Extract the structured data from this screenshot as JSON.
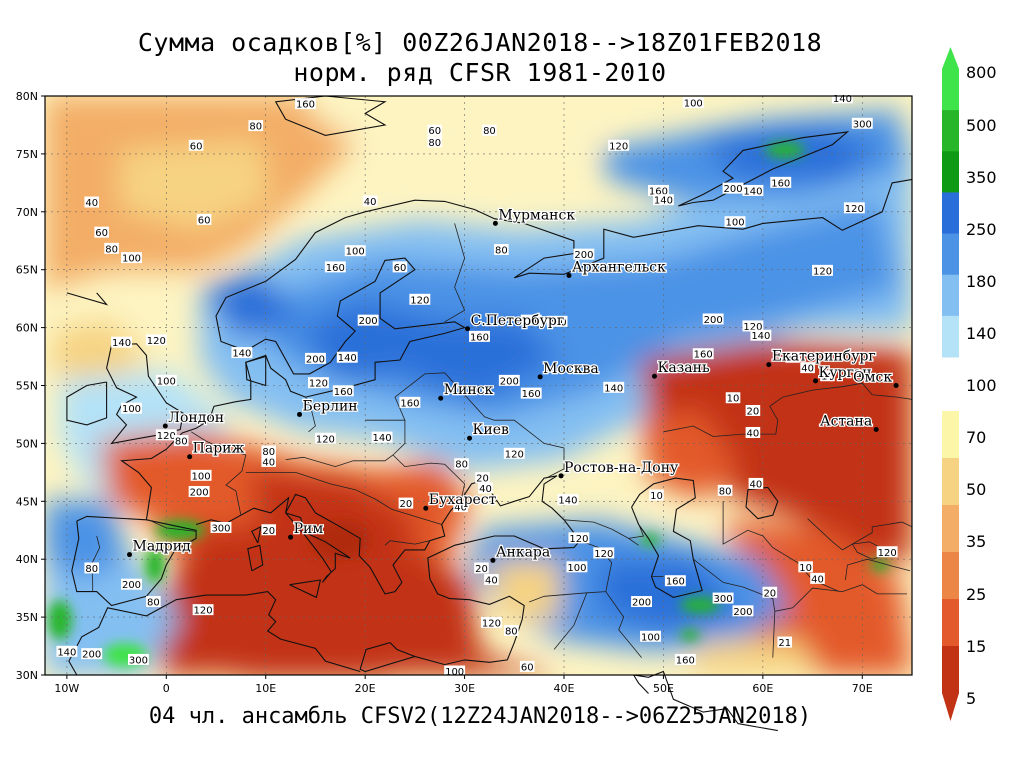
{
  "title_line1": "Сумма осадков[%] 00Z26JAN2018-->18Z01FEB2018",
  "title_line2": "норм. ряд CFSR 1981-2010",
  "footer": "04 чл. ансамбль CFSV2(12Z24JAN2018-->06Z25JAN2018)",
  "lat_labels": [
    "80N",
    "75N",
    "70N",
    "65N",
    "60N",
    "55N",
    "50N",
    "45N",
    "40N",
    "35N",
    "30N"
  ],
  "lon_labels": [
    "10W",
    "0",
    "10E",
    "20E",
    "30E",
    "40E",
    "50E",
    "60E",
    "70E"
  ],
  "cities": [
    {
      "name": "Мурманск",
      "lon": 33.1,
      "lat": 69.0
    },
    {
      "name": "Архангельск",
      "lon": 40.5,
      "lat": 64.5
    },
    {
      "name": "С.Петербург",
      "lon": 30.3,
      "lat": 59.9
    },
    {
      "name": "Москва",
      "lon": 37.6,
      "lat": 55.75
    },
    {
      "name": "Казань",
      "lon": 49.1,
      "lat": 55.8
    },
    {
      "name": "Екатеринбург",
      "lon": 60.6,
      "lat": 56.8
    },
    {
      "name": "Курган",
      "lon": 65.3,
      "lat": 55.4
    },
    {
      "name": "Омск",
      "lon": 73.4,
      "lat": 55.0
    },
    {
      "name": "Астана",
      "lon": 71.4,
      "lat": 51.2
    },
    {
      "name": "Минск",
      "lon": 27.6,
      "lat": 53.9
    },
    {
      "name": "Берлин",
      "lon": 13.4,
      "lat": 52.5
    },
    {
      "name": "Лондон",
      "lon": -0.1,
      "lat": 51.5
    },
    {
      "name": "Париж",
      "lon": 2.35,
      "lat": 48.85
    },
    {
      "name": "Киев",
      "lon": 30.5,
      "lat": 50.45
    },
    {
      "name": "Ростов-на-Дону",
      "lon": 39.7,
      "lat": 47.2
    },
    {
      "name": "Бухарест",
      "lon": 26.1,
      "lat": 44.4
    },
    {
      "name": "Рим",
      "lon": 12.5,
      "lat": 41.9
    },
    {
      "name": "Мадрид",
      "lon": -3.7,
      "lat": 40.4
    },
    {
      "name": "Анкара",
      "lon": 32.85,
      "lat": 39.9
    }
  ],
  "contour_labels": [
    {
      "text": "160",
      "lon": 14,
      "lat": 79.3
    },
    {
      "text": "80",
      "lon": 9,
      "lat": 77.4
    },
    {
      "text": "60",
      "lon": 3,
      "lat": 75.7
    },
    {
      "text": "60",
      "lon": 27,
      "lat": 77
    },
    {
      "text": "80",
      "lon": 27,
      "lat": 76
    },
    {
      "text": "80",
      "lon": 32.5,
      "lat": 77
    },
    {
      "text": "120",
      "lon": 45.5,
      "lat": 75.7
    },
    {
      "text": "100",
      "lon": 53,
      "lat": 79.4
    },
    {
      "text": "140",
      "lon": 68,
      "lat": 79.8
    },
    {
      "text": "300",
      "lon": 70,
      "lat": 77.6
    },
    {
      "text": "160",
      "lon": 61.8,
      "lat": 72.5
    },
    {
      "text": "200",
      "lon": 57,
      "lat": 72
    },
    {
      "text": "140",
      "lon": 59,
      "lat": 71.8
    },
    {
      "text": "160",
      "lon": 49.5,
      "lat": 71.8
    },
    {
      "text": "140",
      "lon": 50,
      "lat": 71
    },
    {
      "text": "120",
      "lon": 69.2,
      "lat": 70.3
    },
    {
      "text": "100",
      "lon": 57.2,
      "lat": 69.1
    },
    {
      "text": "40",
      "lon": -7.5,
      "lat": 70.8
    },
    {
      "text": "60",
      "lon": 3.8,
      "lat": 69.3
    },
    {
      "text": "40",
      "lon": 20.5,
      "lat": 70.9
    },
    {
      "text": "60",
      "lon": -6.5,
      "lat": 68.2
    },
    {
      "text": "80",
      "lon": -5.5,
      "lat": 66.8
    },
    {
      "text": "100",
      "lon": -3.5,
      "lat": 66
    },
    {
      "text": "100",
      "lon": 19,
      "lat": 66.6
    },
    {
      "text": "160",
      "lon": 17,
      "lat": 65.2
    },
    {
      "text": "60",
      "lon": 23.5,
      "lat": 65.2
    },
    {
      "text": "80",
      "lon": 33.7,
      "lat": 66.7
    },
    {
      "text": "200",
      "lon": 42,
      "lat": 66.3
    },
    {
      "text": "120",
      "lon": 66,
      "lat": 64.9
    },
    {
      "text": "120",
      "lon": 25.5,
      "lat": 62.4
    },
    {
      "text": "200",
      "lon": 20.3,
      "lat": 60.6
    },
    {
      "text": "140",
      "lon": 36.7,
      "lat": 60.6
    },
    {
      "text": "200",
      "lon": 39.3,
      "lat": 60.5
    },
    {
      "text": "200",
      "lon": 55,
      "lat": 60.7
    },
    {
      "text": "120",
      "lon": 59,
      "lat": 60.1
    },
    {
      "text": "140",
      "lon": 59.8,
      "lat": 59.3
    },
    {
      "text": "160",
      "lon": 31.5,
      "lat": 59.2
    },
    {
      "text": "140",
      "lon": -4.5,
      "lat": 58.7
    },
    {
      "text": "120",
      "lon": -1,
      "lat": 58.9
    },
    {
      "text": "140",
      "lon": 7.6,
      "lat": 57.8
    },
    {
      "text": "200",
      "lon": 15,
      "lat": 57.3
    },
    {
      "text": "140",
      "lon": 18.2,
      "lat": 57.4
    },
    {
      "text": "160",
      "lon": 54,
      "lat": 57.7
    },
    {
      "text": "80",
      "lon": 63,
      "lat": 57.4
    },
    {
      "text": "40",
      "lon": 64.5,
      "lat": 56.5
    },
    {
      "text": "10",
      "lon": 66.5,
      "lat": 55.8
    },
    {
      "text": "100",
      "lon": 0,
      "lat": 55.4
    },
    {
      "text": "120",
      "lon": 15.3,
      "lat": 55.2
    },
    {
      "text": "200",
      "lon": 34.5,
      "lat": 55.4
    },
    {
      "text": "140",
      "lon": 45,
      "lat": 54.8
    },
    {
      "text": "160",
      "lon": 17.8,
      "lat": 54.5
    },
    {
      "text": "160",
      "lon": 36.7,
      "lat": 54.3
    },
    {
      "text": "10",
      "lon": 57,
      "lat": 53.9
    },
    {
      "text": "20",
      "lon": 59,
      "lat": 52.8
    },
    {
      "text": "100",
      "lon": -3.5,
      "lat": 53
    },
    {
      "text": "160",
      "lon": 24.5,
      "lat": 53.5
    },
    {
      "text": "40",
      "lon": 59,
      "lat": 50.9
    },
    {
      "text": "120",
      "lon": 0,
      "lat": 50.7
    },
    {
      "text": "80",
      "lon": 1.5,
      "lat": 50.2
    },
    {
      "text": "120",
      "lon": 16,
      "lat": 50.4
    },
    {
      "text": "140",
      "lon": 21.7,
      "lat": 50.5
    },
    {
      "text": "80",
      "lon": 10.3,
      "lat": 49.3
    },
    {
      "text": "40",
      "lon": 10.3,
      "lat": 48.4
    },
    {
      "text": "120",
      "lon": 35,
      "lat": 49.1
    },
    {
      "text": "80",
      "lon": 29.7,
      "lat": 48.2
    },
    {
      "text": "100",
      "lon": 3.5,
      "lat": 47.2
    },
    {
      "text": "20",
      "lon": 31.8,
      "lat": 47
    },
    {
      "text": "40",
      "lon": 32.1,
      "lat": 46.1
    },
    {
      "text": "200",
      "lon": 3.3,
      "lat": 45.8
    },
    {
      "text": "40",
      "lon": 59.3,
      "lat": 46.5
    },
    {
      "text": "80",
      "lon": 56.2,
      "lat": 45.9
    },
    {
      "text": "10",
      "lon": 49.3,
      "lat": 45.5
    },
    {
      "text": "140",
      "lon": 40.4,
      "lat": 45.1
    },
    {
      "text": "20",
      "lon": 24.1,
      "lat": 44.8
    },
    {
      "text": "40",
      "lon": 29.6,
      "lat": 44.5
    },
    {
      "text": "20",
      "lon": 10.3,
      "lat": 42.5
    },
    {
      "text": "300",
      "lon": 5.5,
      "lat": 42.7
    },
    {
      "text": "120",
      "lon": 41.5,
      "lat": 41.8
    },
    {
      "text": "120",
      "lon": 44,
      "lat": 40.5
    },
    {
      "text": "80",
      "lon": -7.5,
      "lat": 39.2
    },
    {
      "text": "100",
      "lon": 41.3,
      "lat": 39.3
    },
    {
      "text": "20",
      "lon": 31.7,
      "lat": 39.2
    },
    {
      "text": "40",
      "lon": 32.7,
      "lat": 38.2
    },
    {
      "text": "200",
      "lon": -3.5,
      "lat": 37.8
    },
    {
      "text": "10",
      "lon": 64.3,
      "lat": 39.3
    },
    {
      "text": "40",
      "lon": 65.5,
      "lat": 38.3
    },
    {
      "text": "120",
      "lon": 72.5,
      "lat": 40.6
    },
    {
      "text": "160",
      "lon": 51.2,
      "lat": 38.1
    },
    {
      "text": "20",
      "lon": 60.7,
      "lat": 37.1
    },
    {
      "text": "300",
      "lon": 56,
      "lat": 36.6
    },
    {
      "text": "200",
      "lon": 47.8,
      "lat": 36.3
    },
    {
      "text": "200",
      "lon": 58,
      "lat": 35.5
    },
    {
      "text": "80",
      "lon": -1.3,
      "lat": 36.3
    },
    {
      "text": "120",
      "lon": 3.7,
      "lat": 35.6
    },
    {
      "text": "120",
      "lon": 32.7,
      "lat": 34.5
    },
    {
      "text": "80",
      "lon": 34.7,
      "lat": 33.8
    },
    {
      "text": "100",
      "lon": 48.7,
      "lat": 33.3
    },
    {
      "text": "21",
      "lon": 62.2,
      "lat": 32.8
    },
    {
      "text": "140",
      "lon": -10,
      "lat": 32
    },
    {
      "text": "200",
      "lon": -7.5,
      "lat": 31.8
    },
    {
      "text": "300",
      "lon": -2.8,
      "lat": 31.3
    },
    {
      "text": "160",
      "lon": 52.2,
      "lat": 31.3
    },
    {
      "text": "100",
      "lon": 29,
      "lat": 30.3
    },
    {
      "text": "60",
      "lon": 36.3,
      "lat": 30.7
    }
  ],
  "colorbar": [
    {
      "label": "800",
      "color": "#3fe34a"
    },
    {
      "label": "500",
      "color": "#27b52a"
    },
    {
      "label": "350",
      "color": "#0f9a15"
    },
    {
      "label": "250",
      "color": "#2a6fd9"
    },
    {
      "label": "180",
      "color": "#4c93e6"
    },
    {
      "label": "140",
      "color": "#84bff2"
    },
    {
      "label": "100",
      "color": "#b4e2f7"
    },
    {
      "label": "70",
      "color": "#fcf7a8"
    },
    {
      "label": "50",
      "color": "#f6d382"
    },
    {
      "label": "35",
      "color": "#f3ad66"
    },
    {
      "label": "25",
      "color": "#ec8646"
    },
    {
      "label": "15",
      "color": "#e35a2c"
    },
    {
      "label": "5",
      "color": "#c23214"
    }
  ]
}
